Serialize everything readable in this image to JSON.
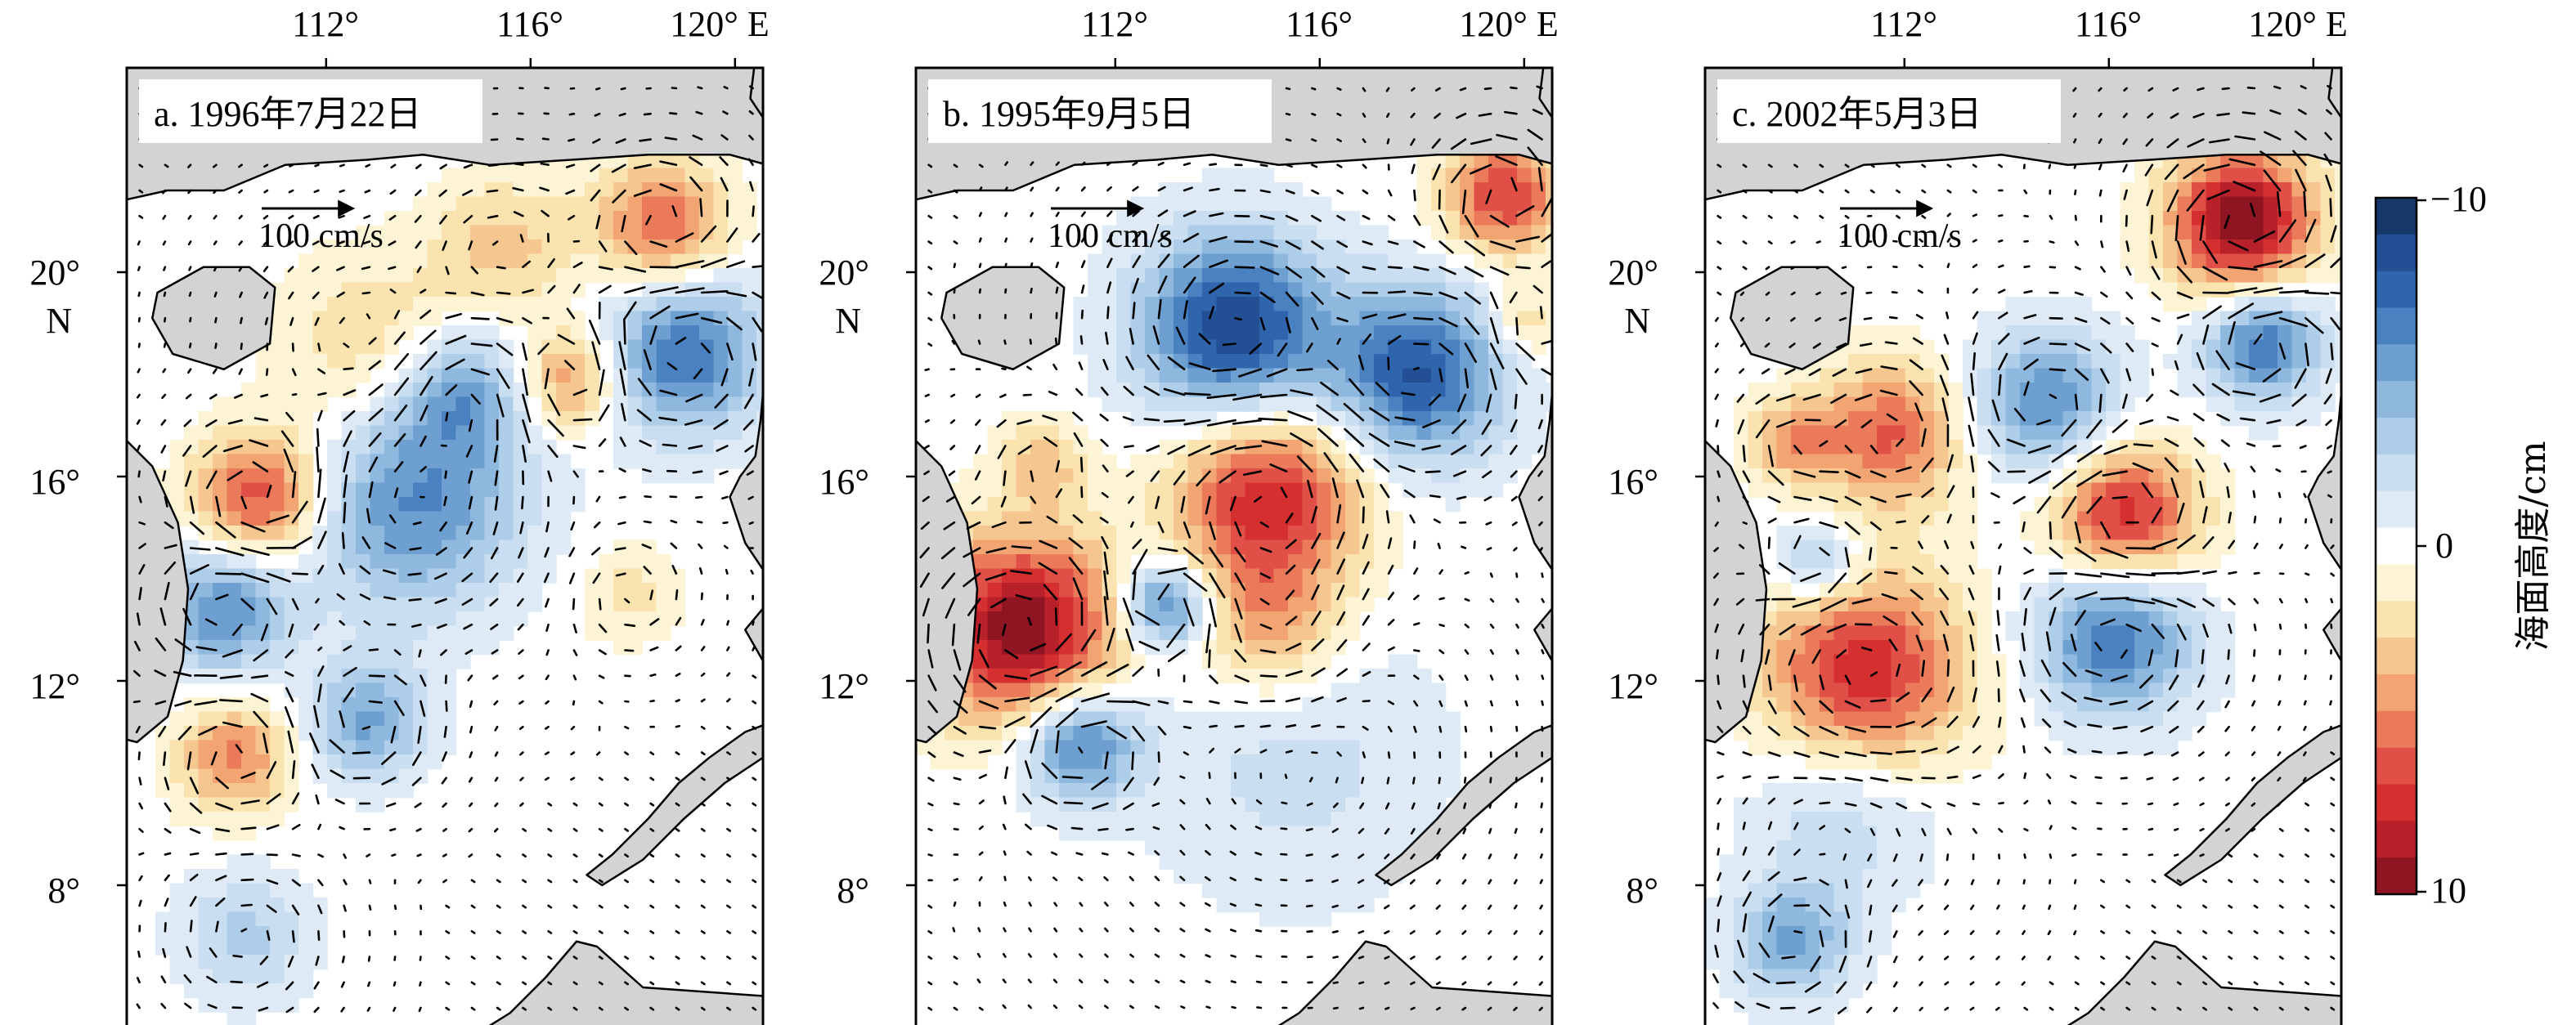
{
  "axes": {
    "lon_ticks": [
      "112°",
      "116°",
      "120° E"
    ],
    "lat_ticks": [
      "20°",
      "16°",
      "12°",
      "8°"
    ],
    "lat_hemisphere": "N"
  },
  "panels": [
    {
      "label": "a. 1996年7月22日",
      "scale_label": "100 cm/s",
      "eddies": [
        {
          "lon": 118.6,
          "lat": 20.9,
          "amp": 6,
          "r": 0.9
        },
        {
          "lon": 119.0,
          "lat": 18.4,
          "amp": -7,
          "r": 1.1
        },
        {
          "lon": 116.8,
          "lat": 17.9,
          "amp": 5,
          "r": 0.7
        },
        {
          "lon": 114.6,
          "lat": 17.7,
          "amp": -5,
          "r": 0.9
        },
        {
          "lon": 113.7,
          "lat": 15.5,
          "amp": -6,
          "r": 1.5
        },
        {
          "lon": 110.7,
          "lat": 15.6,
          "amp": 7,
          "r": 0.9
        },
        {
          "lon": 110.0,
          "lat": 13.4,
          "amp": -6,
          "r": 0.9
        },
        {
          "lon": 112.8,
          "lat": 11.2,
          "amp": -5,
          "r": 0.8
        },
        {
          "lon": 110.2,
          "lat": 10.5,
          "amp": 5,
          "r": 0.8
        },
        {
          "lon": 113.0,
          "lat": 18.4,
          "amp": 3,
          "r": 1.3
        },
        {
          "lon": 115.5,
          "lat": 20.5,
          "amp": 3,
          "r": 1.0
        },
        {
          "lon": 117.9,
          "lat": 13.7,
          "amp": 2,
          "r": 0.7
        },
        {
          "lon": 110.4,
          "lat": 7.0,
          "amp": -3,
          "r": 0.9
        }
      ]
    },
    {
      "label": "b. 1995年9月5日",
      "scale_label": "100 cm/s",
      "eddies": [
        {
          "lon": 119.6,
          "lat": 21.5,
          "amp": 7,
          "r": 0.8
        },
        {
          "lon": 114.3,
          "lat": 18.9,
          "amp": -9,
          "r": 1.3
        },
        {
          "lon": 117.9,
          "lat": 18.0,
          "amp": -8,
          "r": 1.2
        },
        {
          "lon": 115.0,
          "lat": 15.6,
          "amp": 8,
          "r": 1.3
        },
        {
          "lon": 110.2,
          "lat": 13.0,
          "amp": 10,
          "r": 1.3
        },
        {
          "lon": 113.0,
          "lat": 13.5,
          "amp": -7,
          "r": 0.6
        },
        {
          "lon": 111.3,
          "lat": 10.8,
          "amp": -7,
          "r": 0.8
        },
        {
          "lon": 115.0,
          "lat": 13.0,
          "amp": 4,
          "r": 1.0
        },
        {
          "lon": 110.6,
          "lat": 16.3,
          "amp": 3,
          "r": 0.6
        },
        {
          "lon": 115.5,
          "lat": 10.5,
          "amp": -2,
          "r": 2.0
        },
        {
          "lon": 120.0,
          "lat": 19.0,
          "amp": 3,
          "r": 0.5
        }
      ]
    },
    {
      "label": "c. 2002年5月3日",
      "scale_label": "100 cm/s",
      "eddies": [
        {
          "lon": 118.6,
          "lat": 21.0,
          "amp": 10,
          "r": 1.0
        },
        {
          "lon": 119.0,
          "lat": 18.6,
          "amp": -7,
          "r": 0.8
        },
        {
          "lon": 114.8,
          "lat": 17.4,
          "amp": -6,
          "r": 1.0
        },
        {
          "lon": 111.7,
          "lat": 16.8,
          "amp": 6,
          "r": 1.0
        },
        {
          "lon": 116.3,
          "lat": 15.2,
          "amp": 8,
          "r": 1.0
        },
        {
          "lon": 110.3,
          "lat": 14.3,
          "amp": -4,
          "r": 0.6
        },
        {
          "lon": 116.1,
          "lat": 12.9,
          "amp": -7,
          "r": 1.1
        },
        {
          "lon": 111.2,
          "lat": 12.1,
          "amp": 8,
          "r": 1.4
        },
        {
          "lon": 110.8,
          "lat": 9.7,
          "amp": -3,
          "r": 1.3
        },
        {
          "lon": 109.8,
          "lat": 6.9,
          "amp": -5,
          "r": 0.8
        },
        {
          "lon": 109.8,
          "lat": 16.7,
          "amp": 4,
          "r": 0.6
        }
      ]
    }
  ],
  "colorbar": {
    "tick_top": "−10",
    "tick_mid": "0",
    "tick_bottom": "10",
    "title": "海面高度/cm",
    "min": -10,
    "max": 10,
    "colors": [
      "#17376b",
      "#234f95",
      "#2e65ad",
      "#4a82c1",
      "#6e9fd1",
      "#8fb8de",
      "#aecde9",
      "#c9def1",
      "#deebf7",
      "#ffffff",
      "#fdf4d6",
      "#fbe3b0",
      "#f6c690",
      "#f2a472",
      "#ea7a5a",
      "#e15047",
      "#d62f30",
      "#b8202a",
      "#8f1522"
    ]
  }
}
